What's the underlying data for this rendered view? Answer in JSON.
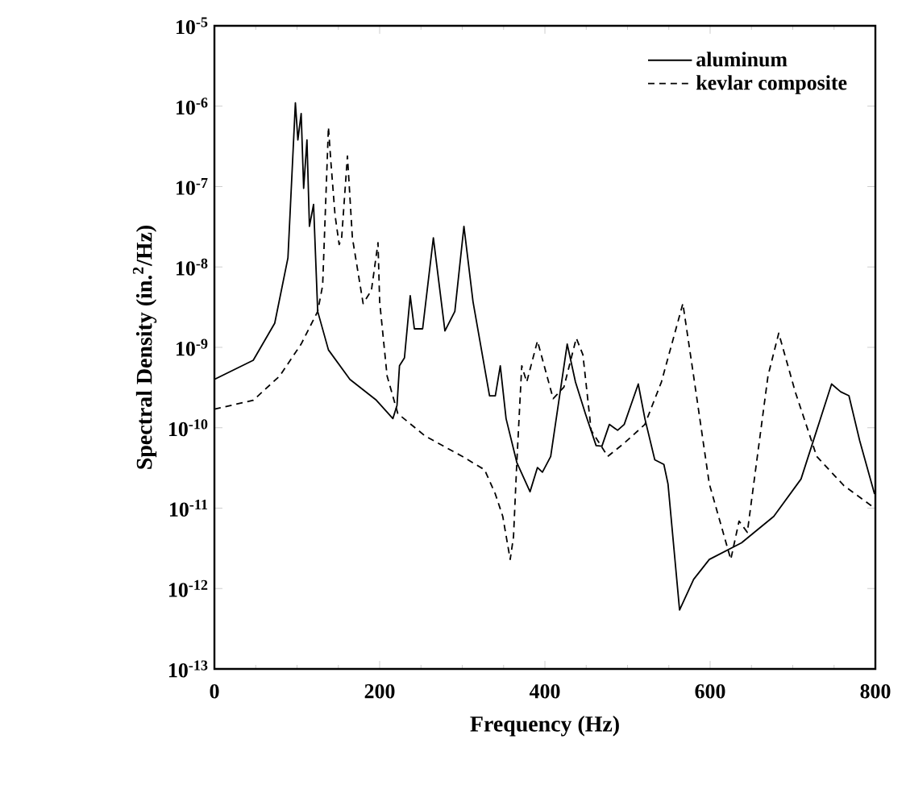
{
  "chart_data": {
    "type": "line",
    "xlabel": "Frequency (Hz)",
    "ylabel": "Spectral Density (in.$^{2}$/Hz)",
    "xlim": [
      0,
      800
    ],
    "xticks": [
      0,
      200,
      400,
      600,
      800
    ],
    "ylim": [
      1e-13,
      1e-05
    ],
    "yticks": [
      {
        "value": 1e-05,
        "label": "10$^{-5}$"
      },
      {
        "value": 1e-06,
        "label": "10$^{-6}$"
      },
      {
        "value": 1e-07,
        "label": "10$^{-7}$"
      },
      {
        "value": 1e-08,
        "label": "10$^{-8}$"
      },
      {
        "value": 1e-09,
        "label": "10$^{-9}$"
      },
      {
        "value": 1e-10,
        "label": "10$^{-10}$"
      },
      {
        "value": 1e-11,
        "label": "10$^{-11}$"
      },
      {
        "value": 1e-12,
        "label": "10$^{-12}$"
      },
      {
        "value": 1e-13,
        "label": "10$^{-13}$"
      }
    ],
    "log": "y",
    "grid": false,
    "legend": "top right",
    "marker": "none",
    "series": [
      {
        "name": "aluminum",
        "color": "#000000",
        "line_style": "solid",
        "x": [
          0,
          47,
          73,
          89,
          98,
          101,
          105,
          108,
          112,
          115,
          120,
          125,
          138,
          164,
          196,
          216,
          221,
          224,
          230,
          237,
          242,
          252,
          265,
          279,
          291,
          302,
          313,
          333,
          340,
          346,
          353,
          366,
          382,
          391,
          397,
          407,
          427,
          437,
          449,
          462,
          469,
          478,
          488,
          496,
          513,
          521,
          533,
          544,
          549,
          563,
          580,
          599,
          638,
          677,
          710,
          729,
          747,
          758,
          768,
          781,
          799
        ],
        "values": [
          4e-10,
          6.9e-10,
          2e-09,
          1.3e-08,
          1.1e-06,
          3.8e-07,
          8.1e-07,
          9.5e-08,
          3.8e-07,
          3.2e-08,
          6e-08,
          2.8e-09,
          9.3e-10,
          4e-10,
          2.2e-10,
          1.3e-10,
          1.9e-10,
          5.9e-10,
          7.4e-10,
          4.4e-09,
          1.7e-09,
          1.7e-09,
          2.3e-08,
          1.6e-09,
          2.8e-09,
          3.2e-08,
          3.7e-09,
          2.5e-10,
          2.5e-10,
          5.9e-10,
          1.3e-10,
          3.7e-11,
          1.6e-11,
          3.2e-11,
          2.8e-11,
          4.4e-11,
          1.1e-09,
          3.7e-10,
          1.5e-10,
          6e-11,
          5.9e-11,
          1.1e-10,
          9.3e-11,
          1.1e-10,
          3.5e-10,
          1.3e-10,
          4e-11,
          3.5e-11,
          2e-11,
          5.4e-13,
          1.3e-12,
          2.3e-12,
          3.7e-12,
          7.9e-12,
          2.3e-11,
          9.3e-11,
          3.5e-10,
          2.8e-10,
          2.5e-10,
          6.9e-11,
          1.5e-11
        ]
      },
      {
        "name": "kevlar composite",
        "color": "#000000",
        "line_style": "dashed",
        "x": [
          0,
          47,
          79,
          105,
          125,
          131,
          138,
          141,
          146,
          151,
          154,
          161,
          167,
          180,
          190,
          198,
          200,
          209,
          222,
          255,
          300,
          327,
          340,
          349,
          358,
          362,
          366,
          372,
          378,
          391,
          410,
          423,
          438,
          446,
          456,
          476,
          495,
          521,
          541,
          567,
          580,
          599,
          625,
          635,
          645,
          670,
          683,
          703,
          729,
          762,
          799
        ],
        "values": [
          1.7e-10,
          2.2e-10,
          4.4e-10,
          1.1e-09,
          2.8e-09,
          5.9e-09,
          5.5e-07,
          2e-07,
          4.4e-08,
          1.9e-08,
          2.3e-08,
          2.4e-07,
          2.3e-08,
          3.5e-09,
          5.1e-09,
          2e-08,
          3.7e-09,
          4.4e-10,
          1.5e-10,
          7.9e-11,
          4.4e-11,
          3e-11,
          1.5e-11,
          7.9e-12,
          2.3e-12,
          4.4e-12,
          3.7e-11,
          5.9e-10,
          3.7e-10,
          1.2e-09,
          2.3e-10,
          3.2e-10,
          1.3e-09,
          8.1e-10,
          9.3e-11,
          4.4e-11,
          6.3e-11,
          1.1e-10,
          3.7e-10,
          3.5e-09,
          4.4e-10,
          2e-11,
          2.3e-12,
          6.9e-12,
          5e-12,
          4.4e-10,
          1.5e-09,
          2.8e-10,
          4.4e-11,
          1.9e-11,
          1e-11
        ]
      }
    ]
  }
}
